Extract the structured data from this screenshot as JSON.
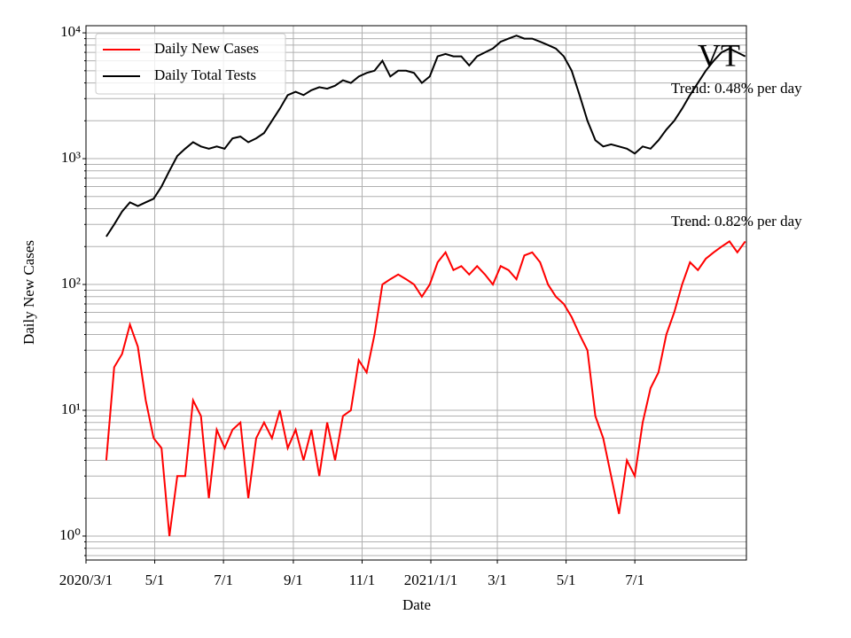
{
  "chart_data": {
    "type": "line",
    "log_y": true,
    "grid": true,
    "legend": "upper left",
    "xlabel": "Date",
    "ylabel": "Daily New Cases",
    "annotations": [
      "VT",
      "Trend: 0.48% per day",
      "Trend: 0.82% per day"
    ],
    "xlim": [
      "2020-03-01",
      "2021-10-08"
    ],
    "xticks": [
      {
        "value": "2020-03-01",
        "label": "2020/3/1"
      },
      {
        "value": "2020-05-01",
        "label": "5/1"
      },
      {
        "value": "2020-07-01",
        "label": "7/1"
      },
      {
        "value": "2020-09-01",
        "label": "9/1"
      },
      {
        "value": "2020-11-01",
        "label": "11/1"
      },
      {
        "value": "2021-01-01",
        "label": "2021/1/1"
      },
      {
        "value": "2021-03-01",
        "label": "3/1"
      },
      {
        "value": "2021-05-01",
        "label": "5/1"
      },
      {
        "value": "2021-07-01",
        "label": "7/1"
      }
    ],
    "ylim": [
      0.645,
      11400
    ],
    "yticks": [
      {
        "value": 1,
        "label": "10⁰"
      },
      {
        "value": 10,
        "label": "10¹"
      },
      {
        "value": 100,
        "label": "10²"
      },
      {
        "value": 1000,
        "label": "10³"
      },
      {
        "value": 10000,
        "label": "10⁴"
      }
    ],
    "minor_yticks": [
      0.7,
      0.8,
      0.9,
      2,
      3,
      4,
      5,
      6,
      7,
      8,
      9,
      20,
      30,
      40,
      50,
      60,
      70,
      80,
      90,
      200,
      300,
      400,
      500,
      600,
      700,
      800,
      900,
      2000,
      3000,
      4000,
      5000,
      6000,
      7000,
      8000,
      9000
    ],
    "x": [
      "2020-03-19",
      "2020-03-26",
      "2020-04-02",
      "2020-04-09",
      "2020-04-16",
      "2020-04-23",
      "2020-04-30",
      "2020-05-07",
      "2020-05-14",
      "2020-05-21",
      "2020-05-28",
      "2020-06-04",
      "2020-06-11",
      "2020-06-18",
      "2020-06-25",
      "2020-07-02",
      "2020-07-09",
      "2020-07-16",
      "2020-07-23",
      "2020-07-30",
      "2020-08-06",
      "2020-08-13",
      "2020-08-20",
      "2020-08-27",
      "2020-09-03",
      "2020-09-10",
      "2020-09-17",
      "2020-09-24",
      "2020-10-01",
      "2020-10-08",
      "2020-10-15",
      "2020-10-22",
      "2020-10-29",
      "2020-11-05",
      "2020-11-12",
      "2020-11-19",
      "2020-11-26",
      "2020-12-03",
      "2020-12-10",
      "2020-12-17",
      "2020-12-24",
      "2020-12-31",
      "2021-01-07",
      "2021-01-14",
      "2021-01-21",
      "2021-01-28",
      "2021-02-04",
      "2021-02-11",
      "2021-02-18",
      "2021-02-25",
      "2021-03-04",
      "2021-03-11",
      "2021-03-18",
      "2021-03-25",
      "2021-04-01",
      "2021-04-08",
      "2021-04-15",
      "2021-04-22",
      "2021-04-29",
      "2021-05-06",
      "2021-05-13",
      "2021-05-20",
      "2021-05-27",
      "2021-06-03",
      "2021-06-10",
      "2021-06-17",
      "2021-06-24",
      "2021-07-01",
      "2021-07-08",
      "2021-07-15",
      "2021-07-22",
      "2021-07-29",
      "2021-08-05",
      "2021-08-12",
      "2021-08-19",
      "2021-08-26",
      "2021-09-02",
      "2021-09-09",
      "2021-09-16",
      "2021-09-23",
      "2021-09-30",
      "2021-10-07"
    ],
    "series": [
      {
        "name": "Daily New Cases",
        "color": "#ff0000",
        "values": [
          4,
          22,
          28,
          48,
          32,
          12,
          6,
          5,
          1,
          3,
          3,
          12,
          9,
          2,
          7,
          5,
          7,
          8,
          2,
          6,
          8,
          6,
          10,
          5,
          7,
          4,
          7,
          3,
          8,
          4,
          9,
          10,
          25,
          20,
          40,
          100,
          110,
          120,
          110,
          100,
          80,
          100,
          150,
          180,
          130,
          140,
          120,
          140,
          120,
          100,
          140,
          130,
          110,
          170,
          180,
          150,
          100,
          80,
          70,
          55,
          40,
          30,
          9,
          6,
          3,
          1.5,
          4,
          3,
          8,
          15,
          20,
          40,
          60,
          100,
          150,
          130,
          160,
          180,
          200,
          220,
          180,
          220
        ]
      },
      {
        "name": "Daily Total Tests",
        "color": "#000000",
        "values": [
          240,
          300,
          380,
          450,
          420,
          450,
          480,
          600,
          800,
          1050,
          1200,
          1350,
          1250,
          1200,
          1250,
          1200,
          1450,
          1500,
          1350,
          1450,
          1600,
          2000,
          2500,
          3200,
          3400,
          3200,
          3500,
          3700,
          3600,
          3800,
          4200,
          4000,
          4500,
          4800,
          5000,
          6000,
          4500,
          5000,
          5000,
          4800,
          4000,
          4500,
          6500,
          6800,
          6500,
          6500,
          5500,
          6500,
          7000,
          7500,
          8500,
          9000,
          9500,
          9000,
          9000,
          8500,
          8000,
          7500,
          6500,
          5000,
          3200,
          2000,
          1400,
          1250,
          1300,
          1250,
          1200,
          1100,
          1250,
          1200,
          1400,
          1700,
          2000,
          2500,
          3200,
          4000,
          5000,
          6000,
          7000,
          7500,
          7000,
          6500
        ]
      }
    ]
  }
}
